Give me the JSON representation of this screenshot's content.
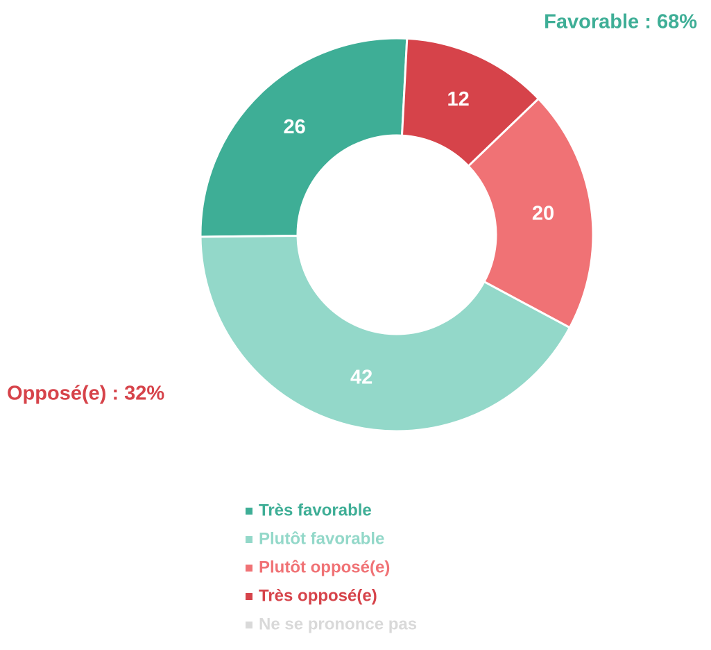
{
  "chart_data": {
    "type": "donut",
    "categories": [
      "Très favorable",
      "Plutôt favorable",
      "Plutôt opposé(e)",
      "Très opposé(e)",
      "Ne se prononce pas"
    ],
    "values": [
      26,
      42,
      20,
      12,
      0
    ],
    "colors": [
      "#3eae96",
      "#93d8c9",
      "#f07275",
      "#d6434a",
      "#d9d9d9"
    ],
    "annotations": [
      {
        "text": "Favorable : 68%",
        "color": "#3eae96"
      },
      {
        "text": "Opposé(e) : 32%",
        "color": "#d6434a"
      }
    ]
  }
}
